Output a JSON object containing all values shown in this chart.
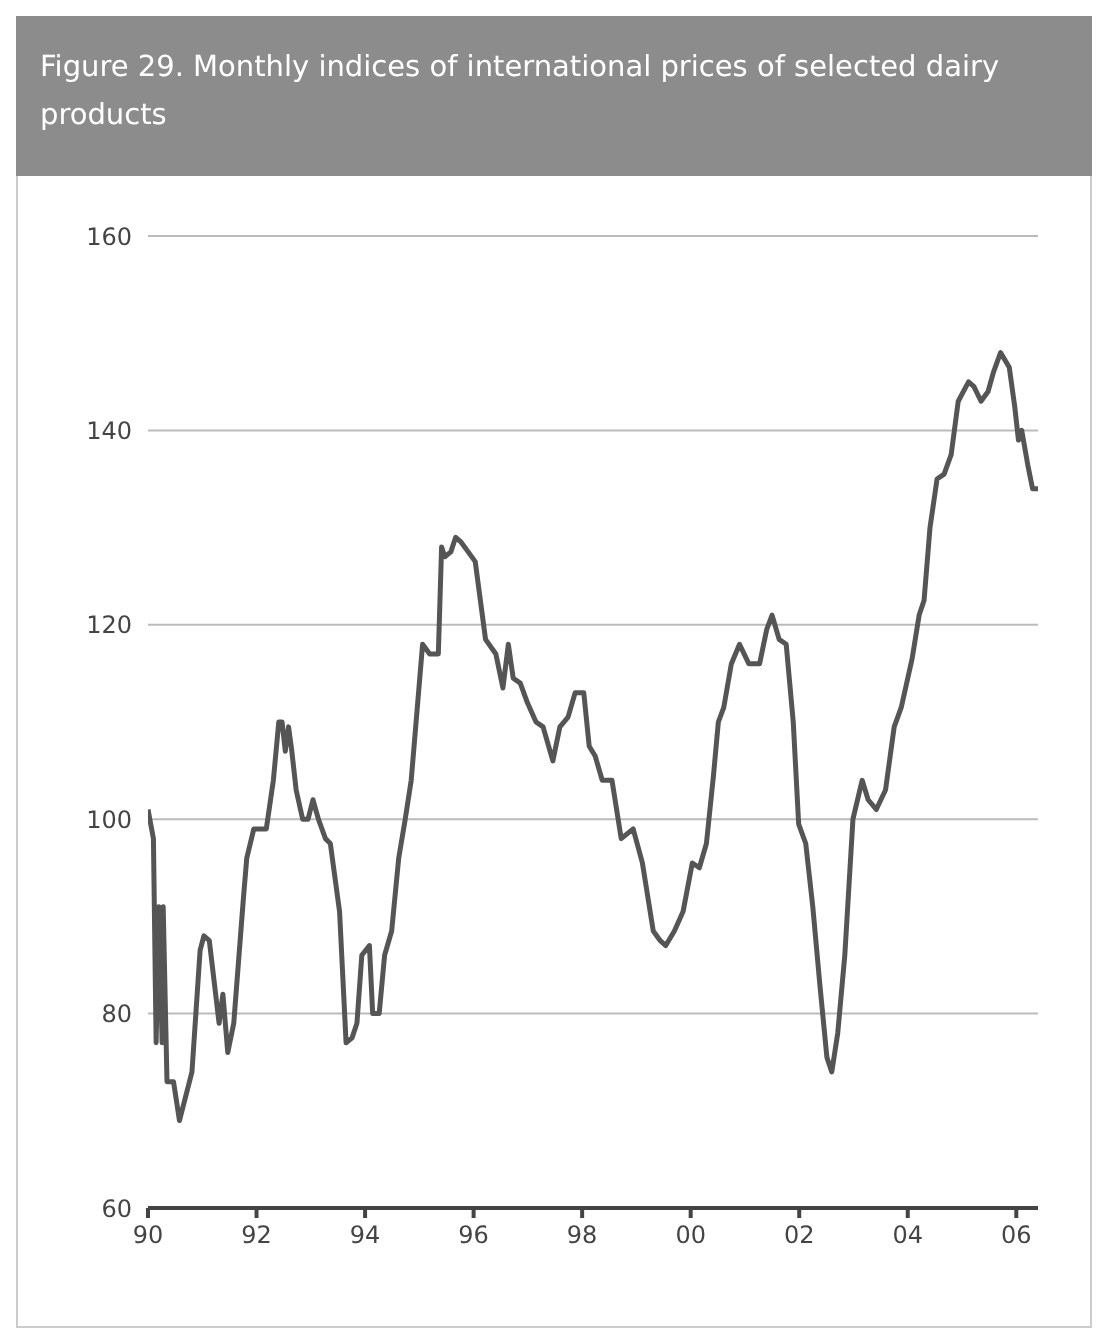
{
  "chart_data": {
    "type": "line",
    "title": "Figure 29. Monthly indices of international prices of selected dairy products",
    "x": [
      1990.0,
      1990.1,
      1990.15,
      1990.2,
      1990.26,
      1990.28,
      1990.35,
      1990.47,
      1990.58,
      1990.81,
      1990.96,
      1991.03,
      1991.13,
      1991.31,
      1991.38,
      1991.47,
      1991.58,
      1991.76,
      1991.82,
      1991.95,
      1992.18,
      1992.31,
      1992.41,
      1992.47,
      1992.53,
      1992.59,
      1992.65,
      1992.73,
      1992.85,
      1992.95,
      1993.04,
      1993.14,
      1993.27,
      1993.36,
      1993.53,
      1993.65,
      1993.76,
      1993.85,
      1993.94,
      1994.08,
      1994.14,
      1994.26,
      1994.36,
      1994.49,
      1994.62,
      1994.74,
      1994.85,
      1995.06,
      1995.19,
      1995.35,
      1995.41,
      1995.47,
      1995.58,
      1995.67,
      1995.77,
      1995.9,
      1996.03,
      1996.22,
      1996.41,
      1996.54,
      1996.64,
      1996.73,
      1996.86,
      1996.99,
      1997.15,
      1997.28,
      1997.46,
      1997.59,
      1997.74,
      1997.87,
      1998.03,
      1998.13,
      1998.24,
      1998.37,
      1998.55,
      1998.72,
      1998.94,
      1999.11,
      1999.31,
      1999.44,
      1999.54,
      1999.7,
      1999.86,
      2000.03,
      2000.16,
      2000.29,
      2000.42,
      2000.51,
      2000.61,
      2000.75,
      2000.9,
      2001.07,
      2001.27,
      2001.4,
      2001.5,
      2001.63,
      2001.76,
      2001.89,
      2001.99,
      2002.12,
      2002.25,
      2002.38,
      2002.51,
      2002.6,
      2002.71,
      2002.84,
      2002.99,
      2003.16,
      2003.27,
      2003.42,
      2003.59,
      2003.75,
      2003.88,
      2004.08,
      2004.21,
      2004.3,
      2004.41,
      2004.54,
      2004.67,
      2004.8,
      2004.93,
      2005.12,
      2005.22,
      2005.35,
      2005.48,
      2005.58,
      2005.71,
      2005.87,
      2005.97,
      2006.04,
      2006.1,
      2006.21,
      2006.3,
      2006.4
    ],
    "series": [
      {
        "color": "#555555",
        "values": [
          101,
          98,
          77,
          91,
          77,
          91,
          73,
          73,
          69,
          74,
          86.5,
          88,
          87.5,
          79,
          82,
          76,
          79,
          92,
          96,
          99,
          99,
          104,
          110,
          110,
          107,
          109.5,
          107,
          103,
          100,
          100,
          102,
          100,
          98,
          97.5,
          90.5,
          77,
          77.5,
          79,
          86,
          87,
          80,
          80,
          86,
          88.5,
          96,
          100,
          104,
          118,
          117,
          117,
          128,
          127,
          127.5,
          129,
          128.5,
          127.5,
          126.5,
          118.5,
          117,
          113.5,
          118,
          114.5,
          114,
          112,
          110,
          109.5,
          106,
          109.5,
          110.5,
          113,
          113,
          107.5,
          106.5,
          104,
          104,
          98,
          99,
          95.5,
          88.5,
          87.5,
          87,
          88.5,
          90.5,
          95.5,
          95,
          97.5,
          104.5,
          110,
          111.5,
          116,
          118,
          116,
          116,
          119.5,
          121,
          118.5,
          118,
          110,
          99.5,
          97.5,
          91,
          83,
          75.5,
          74,
          78,
          86,
          100,
          104,
          102,
          101,
          103,
          109.5,
          111.5,
          116.5,
          121,
          122.5,
          130,
          135,
          135.5,
          137.5,
          143,
          145,
          144.5,
          143,
          144,
          146,
          148,
          146.5,
          142.5,
          139,
          140,
          136.5,
          134,
          134
        ]
      }
    ],
    "xlim": [
      1990,
      2006.4
    ],
    "xticks": [
      {
        "value": 1990,
        "label": "90"
      },
      {
        "value": 1992,
        "label": "92"
      },
      {
        "value": 1994,
        "label": "94"
      },
      {
        "value": 1996,
        "label": "96"
      },
      {
        "value": 1998,
        "label": "98"
      },
      {
        "value": 2000,
        "label": "00"
      },
      {
        "value": 2002,
        "label": "02"
      },
      {
        "value": 2004,
        "label": "04"
      },
      {
        "value": 2006,
        "label": "06"
      }
    ],
    "ylim": [
      60,
      160
    ],
    "yticks": [
      60,
      80,
      100,
      120,
      140,
      160
    ],
    "grid": "y",
    "legend": false,
    "marker": "none",
    "line_style": "solid"
  }
}
